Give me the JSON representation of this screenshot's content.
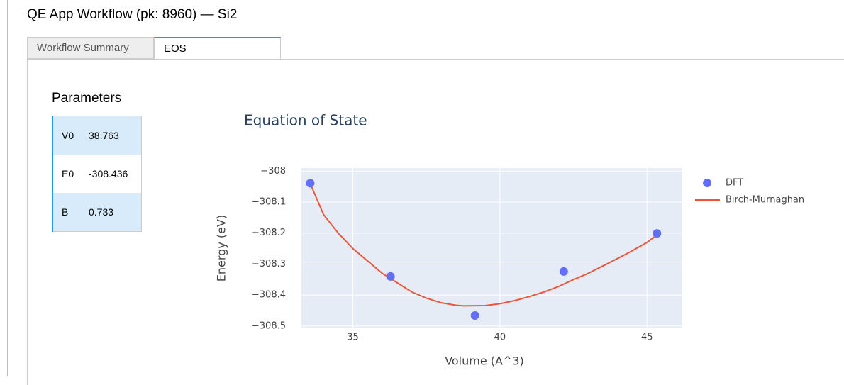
{
  "header": {
    "title": "QE App Workflow (pk: 8960) — Si2"
  },
  "tabs": [
    "Workflow Summary",
    "EOS"
  ],
  "parameters": {
    "title": "Parameters",
    "rows": [
      [
        "V0",
        "38.763"
      ],
      [
        "E0",
        "-308.436"
      ],
      [
        "B",
        "0.733"
      ]
    ]
  },
  "chart_data": {
    "type": "scatter",
    "title": "Equation of State",
    "x_label": "Volume (A^3)",
    "y_label": "Energy (eV)",
    "xlim": [
      33.25,
      46.2
    ],
    "ylim": [
      -308.505,
      -307.99
    ],
    "xticks": [
      35,
      40,
      45
    ],
    "yticks": [
      {
        "value": -308,
        "label": "−308"
      },
      {
        "value": -308.1,
        "label": "−308.1"
      },
      {
        "value": -308.2,
        "label": "−308.2"
      },
      {
        "value": -308.3,
        "label": "−308.3"
      },
      {
        "value": -308.4,
        "label": "−308.4"
      },
      {
        "value": -308.5,
        "label": "−308.5"
      }
    ],
    "grid": true,
    "legend": "right",
    "series": [
      {
        "name": "DFT",
        "mode": "markers",
        "color": "#636efa",
        "x": [
          33.55,
          36.28,
          39.15,
          42.17,
          45.34
        ],
        "values": [
          -308.039,
          -308.34,
          -308.466,
          -308.324,
          -308.201
        ]
      },
      {
        "name": "Birch-Murnaghan",
        "mode": "lines",
        "color": "#ef553b",
        "x": [
          33.55,
          34.0,
          34.5,
          35.0,
          35.5,
          36.0,
          36.5,
          37.0,
          37.5,
          38.0,
          38.5,
          38.76,
          39.5,
          40.0,
          40.5,
          41.0,
          41.5,
          42.0,
          42.5,
          43.0,
          43.5,
          44.0,
          44.5,
          45.0,
          45.35
        ],
        "values": [
          -308.04,
          -308.14,
          -308.2,
          -308.25,
          -308.29,
          -308.33,
          -308.36,
          -308.39,
          -308.41,
          -308.425,
          -308.433,
          -308.435,
          -308.434,
          -308.428,
          -308.418,
          -308.405,
          -308.39,
          -308.372,
          -308.35,
          -308.33,
          -308.306,
          -308.282,
          -308.257,
          -308.23,
          -308.205
        ]
      }
    ]
  }
}
